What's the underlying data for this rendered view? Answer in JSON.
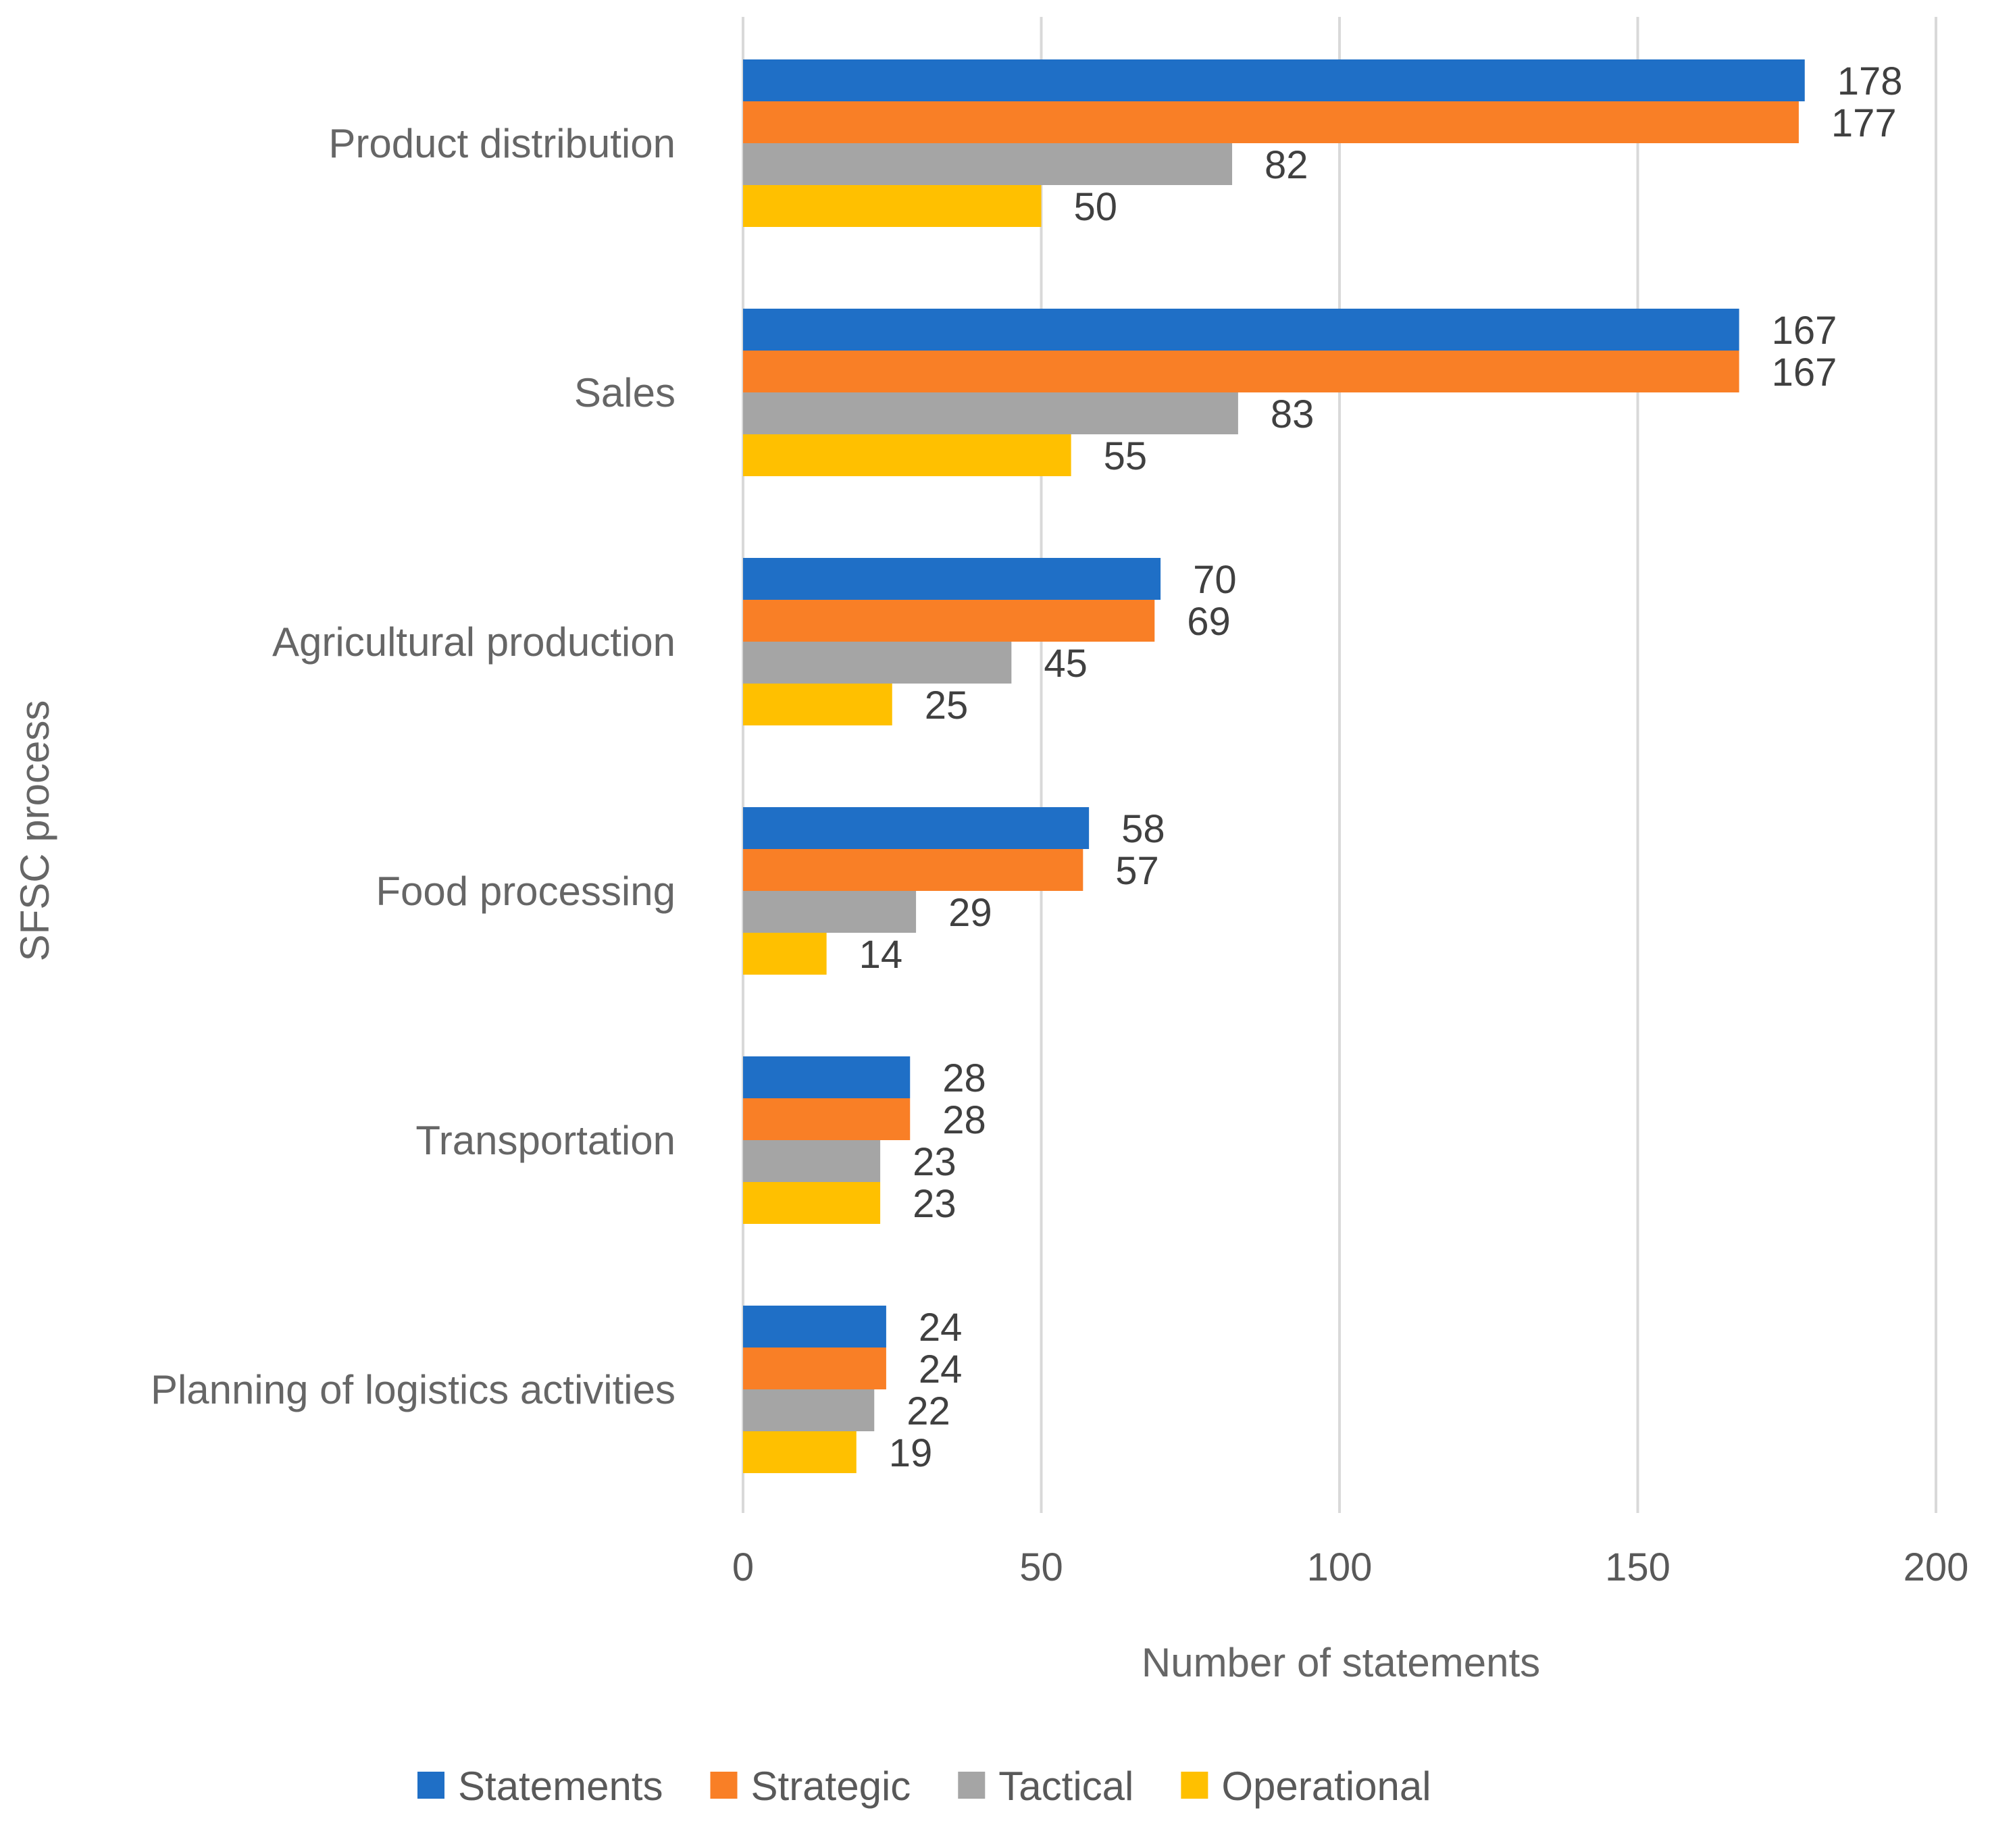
{
  "chart_data": {
    "type": "bar",
    "orientation": "horizontal",
    "categories": [
      "Product distribution",
      "Sales",
      "Agricultural production",
      "Food processing",
      "Transportation",
      "Planning of logistics activities"
    ],
    "series": [
      {
        "name": "Statements",
        "color": "#1f6fc6",
        "values": [
          178,
          167,
          70,
          58,
          28,
          24
        ]
      },
      {
        "name": "Strategic",
        "color": "#f97f26",
        "values": [
          177,
          167,
          69,
          57,
          28,
          24
        ]
      },
      {
        "name": "Tactical",
        "color": "#a5a5a5",
        "values": [
          82,
          83,
          45,
          29,
          23,
          22
        ]
      },
      {
        "name": "Operational",
        "color": "#ffc000",
        "values": [
          50,
          55,
          25,
          14,
          23,
          19
        ]
      }
    ],
    "xlabel": "Number of statements",
    "ylabel": "SFSC process",
    "xlim": [
      0,
      200
    ],
    "xticks": [
      "0",
      "50",
      "100",
      "150",
      "200"
    ],
    "grid": "vertical",
    "legend": "bottom",
    "data_labels": true
  }
}
